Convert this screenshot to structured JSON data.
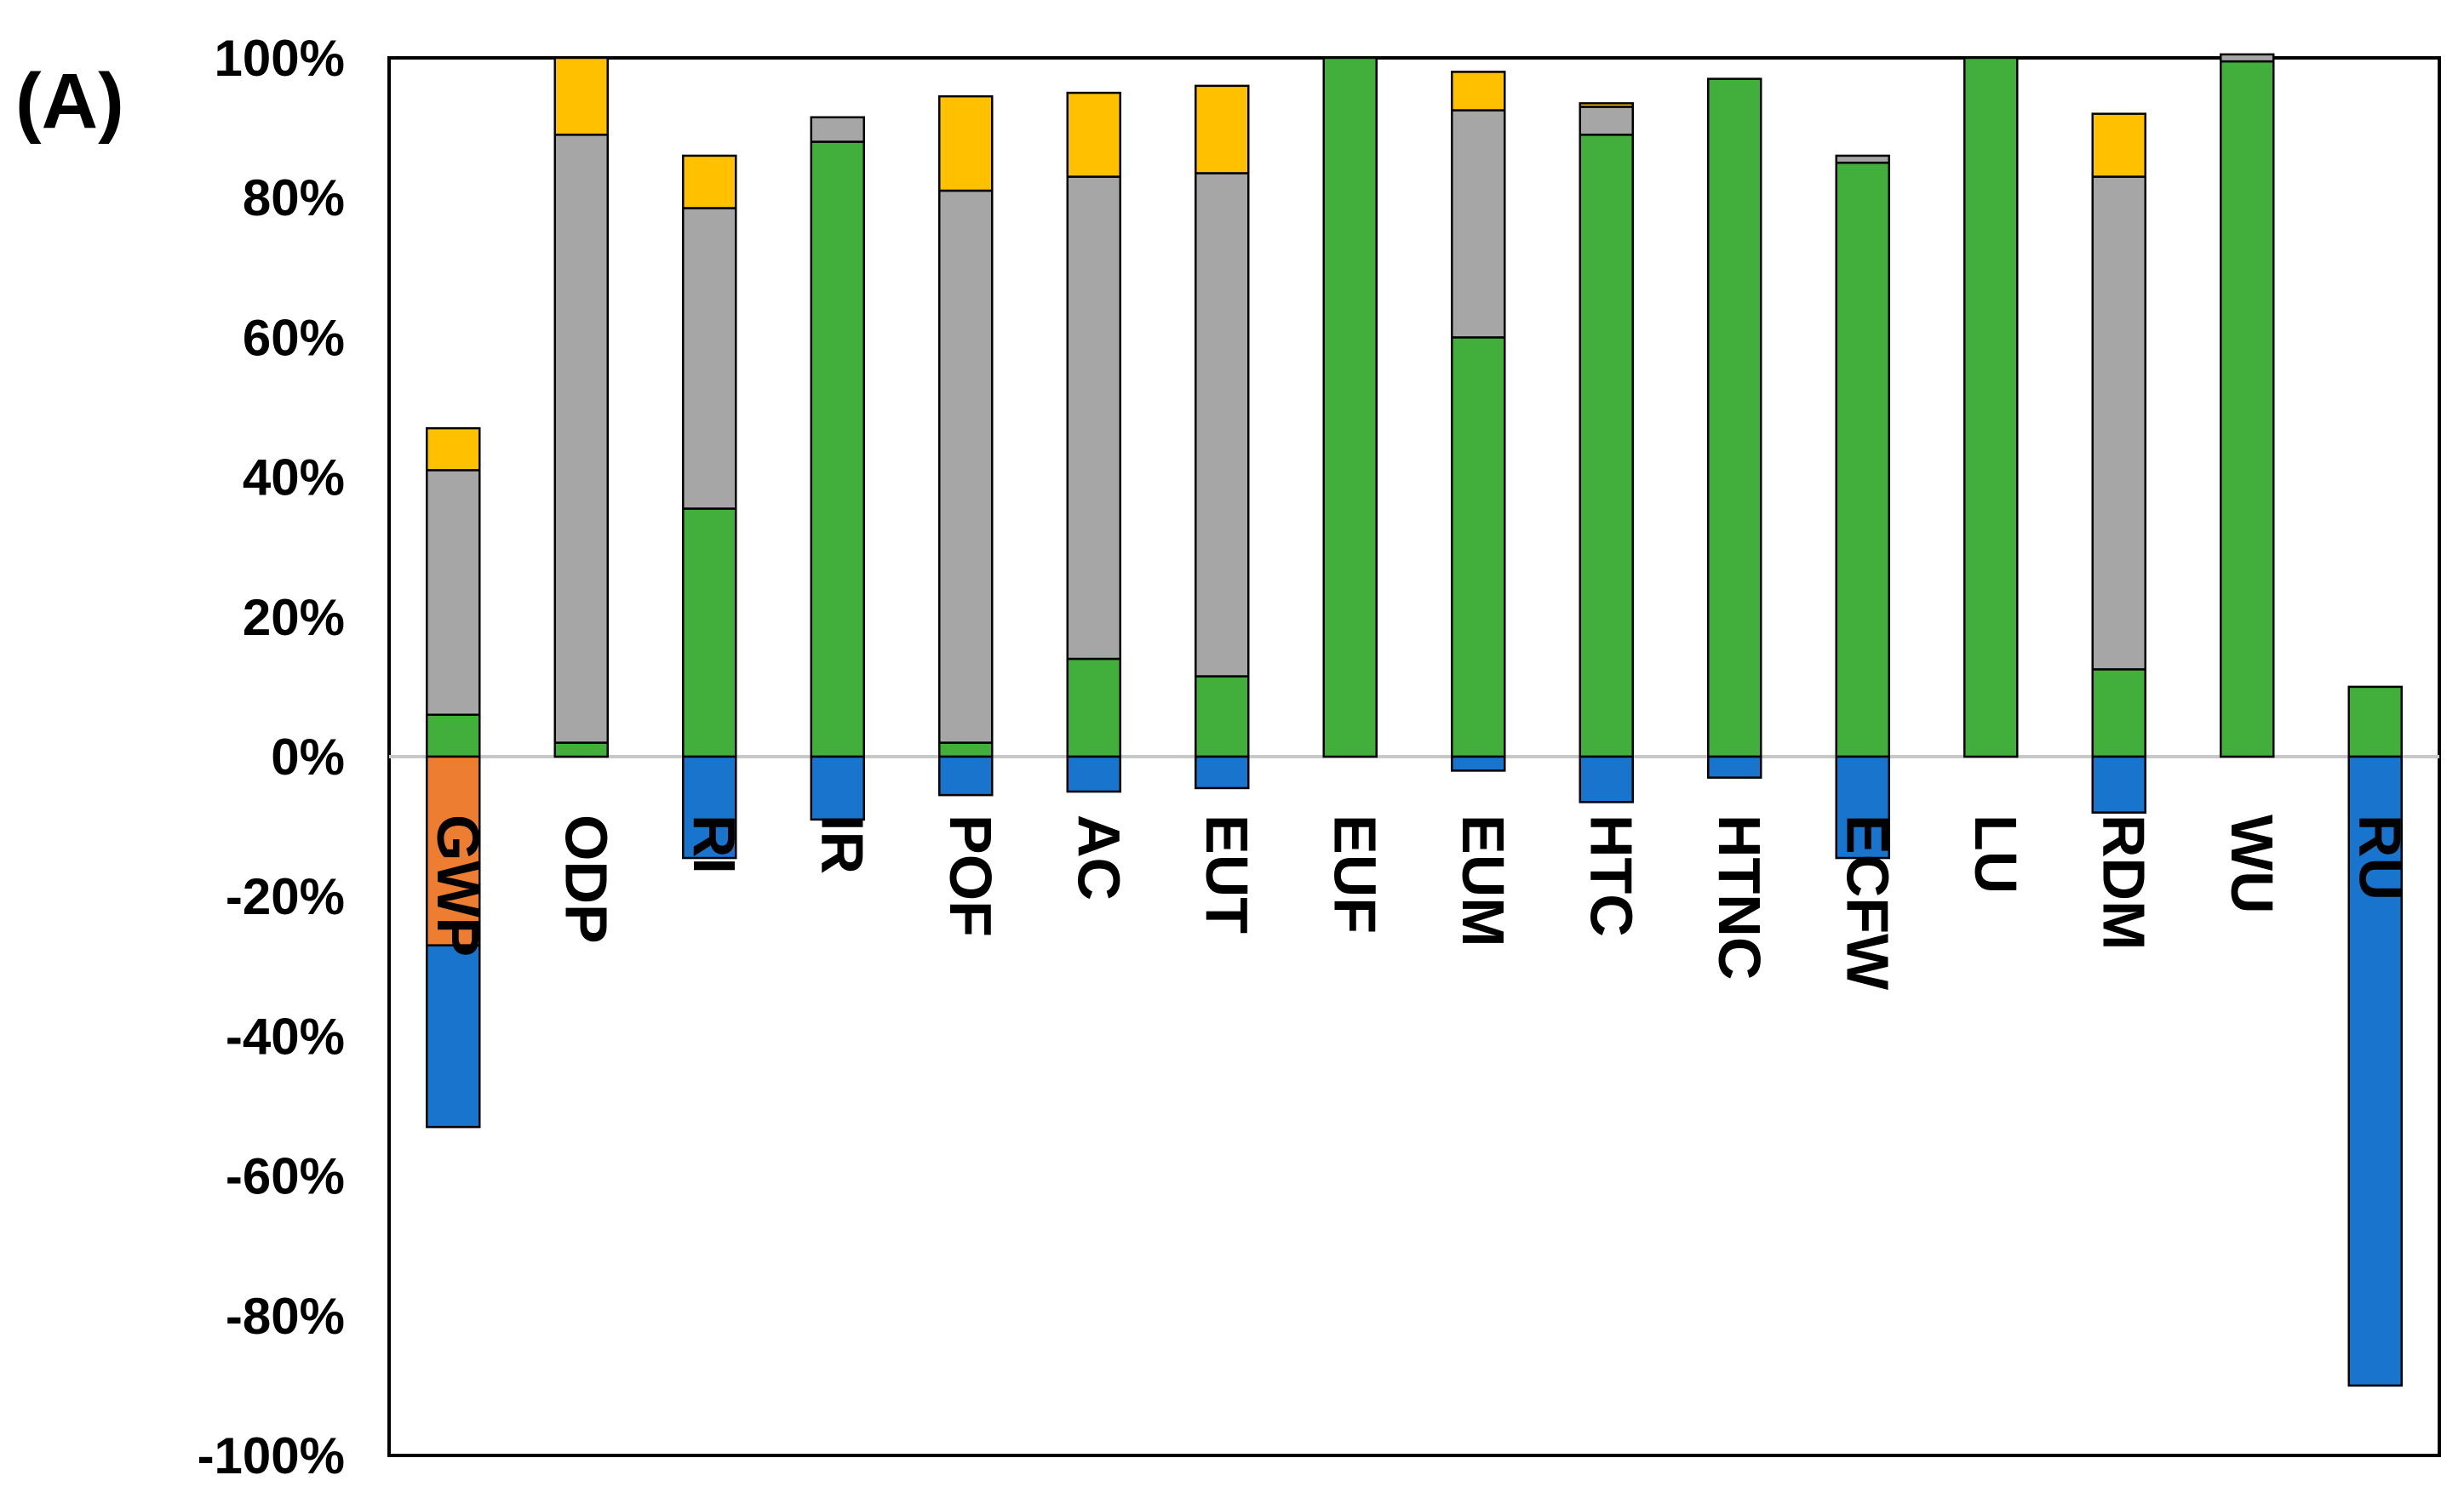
{
  "panel_label": "(A)",
  "chart_data": {
    "type": "bar",
    "stacked": true,
    "title": "",
    "xlabel": "",
    "ylabel": "",
    "ylim": [
      -100,
      100
    ],
    "y_ticks": [
      100,
      80,
      60,
      40,
      20,
      0,
      -20,
      -40,
      -60,
      -80,
      -100
    ],
    "y_tick_labels": [
      "100%",
      "80%",
      "60%",
      "40%",
      "20%",
      "0%",
      "-20%",
      "-40%",
      "-60%",
      "-80%",
      "-100%"
    ],
    "grid": false,
    "legend": "none",
    "categories": [
      "GWP",
      "ODP",
      "RI",
      "IR",
      "POF",
      "AC",
      "EUT",
      "EUF",
      "EUM",
      "HTC",
      "HTNC",
      "ECFW",
      "LU",
      "RDM",
      "WU",
      "RU"
    ],
    "positive_series": [
      {
        "color": "#42ae3c",
        "values": [
          6,
          2,
          35.5,
          88,
          2,
          14,
          11.5,
          100,
          60,
          89,
          97,
          85,
          100,
          12.5,
          99.5,
          10
        ]
      },
      {
        "color": "#a6a6a6",
        "values": [
          35,
          87,
          43,
          3.5,
          79,
          69,
          72,
          0,
          32.5,
          4,
          0,
          1,
          0,
          70.5,
          1,
          0
        ]
      },
      {
        "color": "#ffc000",
        "values": [
          6,
          11,
          7.5,
          0,
          13.5,
          12,
          12.5,
          0,
          5.5,
          0.5,
          0,
          0,
          0,
          9,
          0,
          0
        ]
      }
    ],
    "negative_series": [
      {
        "color": "#ed7d31",
        "values": [
          -27,
          0,
          0,
          0,
          0,
          0,
          0,
          0,
          0,
          0,
          0,
          0,
          0,
          0,
          0,
          0
        ]
      },
      {
        "color": "#1874cd",
        "values": [
          -26,
          0,
          -14.5,
          -9,
          -5.5,
          -5,
          -4.5,
          0,
          -2,
          -6.5,
          -3,
          -14.5,
          0,
          -8,
          0,
          -90
        ]
      }
    ],
    "colors": {
      "axis_frame": "#000000",
      "zero_line": "#c8c8c8",
      "bar_outline": "#000000"
    }
  }
}
